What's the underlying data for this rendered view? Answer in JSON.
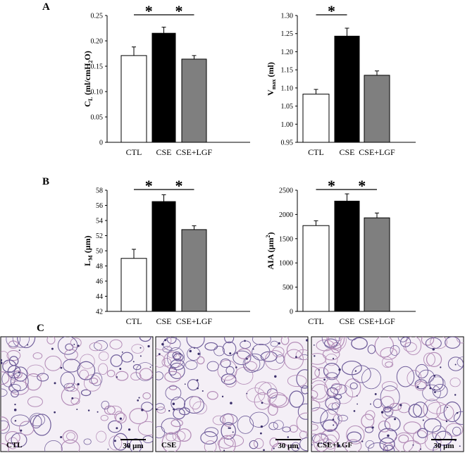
{
  "panels": {
    "A": "A",
    "B": "B",
    "C": "C"
  },
  "chart_data": [
    {
      "type": "bar",
      "panel": "A",
      "categories": [
        "CTL",
        "CSE",
        "CSE+LGF"
      ],
      "values": [
        0.171,
        0.215,
        0.164
      ],
      "errors": [
        0.017,
        0.012,
        0.007
      ],
      "ylim": [
        0,
        0.25
      ],
      "yticks": [
        "0",
        "0.05",
        "0.10",
        "0.15",
        "0.20",
        "0.25"
      ],
      "ylabel": {
        "main": "C",
        "sub": "L",
        "rest": " (ml/cmH",
        "sub2": "2",
        "rest2": "O)"
      },
      "significance": [
        [
          0,
          1
        ],
        [
          1,
          2
        ]
      ],
      "colors": [
        "#ffffff",
        "#000000",
        "#7f7f7f"
      ]
    },
    {
      "type": "bar",
      "panel": "A",
      "categories": [
        "CTL",
        "CSE",
        "CSE+LGF"
      ],
      "values": [
        1.083,
        1.243,
        1.135
      ],
      "errors": [
        0.013,
        0.022,
        0.012
      ],
      "ylim": [
        0.95,
        1.3
      ],
      "yticks": [
        "0.95",
        "1.00",
        "1.05",
        "1.10",
        "1.15",
        "1.20",
        "1.25",
        "1.30"
      ],
      "ylabel": {
        "main": "V",
        "sub": "max",
        "rest": " (ml)",
        "sub2": "",
        "rest2": ""
      },
      "significance": [
        [
          0,
          1
        ]
      ],
      "colors": [
        "#ffffff",
        "#000000",
        "#7f7f7f"
      ]
    },
    {
      "type": "bar",
      "panel": "B",
      "categories": [
        "CTL",
        "CSE",
        "CSE+LGF"
      ],
      "values": [
        49.0,
        56.5,
        52.8
      ],
      "errors": [
        1.2,
        0.9,
        0.5
      ],
      "ylim": [
        42,
        58
      ],
      "yticks": [
        "42",
        "44",
        "46",
        "48",
        "50",
        "52",
        "54",
        "56",
        "58"
      ],
      "ylabel": {
        "main": "L",
        "sub": "M",
        "rest": " (μm)",
        "sub2": "",
        "rest2": ""
      },
      "significance": [
        [
          0,
          1
        ],
        [
          1,
          2
        ]
      ],
      "colors": [
        "#ffffff",
        "#000000",
        "#7f7f7f"
      ]
    },
    {
      "type": "bar",
      "panel": "B",
      "categories": [
        "CTL",
        "CSE",
        "CSE+LGF"
      ],
      "values": [
        1770,
        2275,
        1930
      ],
      "errors": [
        100,
        150,
        100
      ],
      "ylim": [
        0,
        2500
      ],
      "yticks": [
        "0",
        "500",
        "1000",
        "1500",
        "2000",
        "2500"
      ],
      "ylabel": {
        "main": "AIA",
        "sub": "",
        "rest": " (μm",
        "sup": "2",
        "rest2": ")"
      },
      "significance": [
        [
          0,
          1
        ],
        [
          1,
          2
        ]
      ],
      "colors": [
        "#ffffff",
        "#000000",
        "#7f7f7f"
      ]
    }
  ],
  "star": "*",
  "micrographs": [
    {
      "label": "CTL",
      "scale": "30 μm"
    },
    {
      "label": "CSE",
      "scale": "30 μm"
    },
    {
      "label": "CSE+LGF",
      "scale": "30 μm"
    }
  ]
}
